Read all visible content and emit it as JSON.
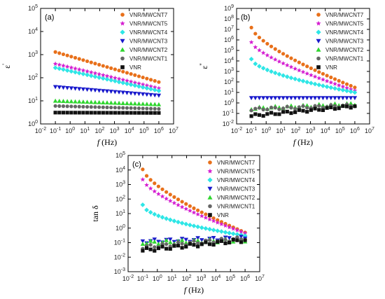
{
  "figure_colors": {
    "VNR/MWCNT7": "#e8701a",
    "VNR/MWCNT5": "#d51fd1",
    "VNR/MWCNT4": "#2ee6e6",
    "VNR/MWCNT3": "#1a1acc",
    "VNR/MWCNT2": "#2fd62f",
    "VNR/MWCNT1": "#666666",
    "VNR": "#111111"
  },
  "chart_data": [
    {
      "type": "scatter",
      "panel_label": "(a)",
      "xlabel_italic": "f",
      "xlabel_unit": " (Hz)",
      "ylabel_text": "ε",
      "ylabel_prime": "'",
      "xscale": "log",
      "yscale": "log",
      "xlim": [
        0.01,
        10000000
      ],
      "ylim": [
        1,
        100000
      ],
      "x_tick_labels": [
        "10-2",
        "10-1",
        "100",
        "101",
        "102",
        "103",
        "104",
        "105",
        "106",
        "107"
      ],
      "y_tick_labels": [
        "100",
        "101",
        "102",
        "103",
        "104",
        "105"
      ],
      "legend_position": "top-right",
      "series": [
        {
          "name": "VNR/MWCNT7",
          "marker": "circle",
          "y_start": 1300,
          "y_end": 65,
          "curve": 1.0
        },
        {
          "name": "VNR/MWCNT5",
          "marker": "star",
          "y_start": 400,
          "y_end": 35,
          "curve": 1.0
        },
        {
          "name": "VNR/MWCNT4",
          "marker": "diamond",
          "y_start": 270,
          "y_end": 27,
          "curve": 1.0
        },
        {
          "name": "VNR/MWCNT3",
          "marker": "triangle-down",
          "y_start": 40,
          "y_end": 17,
          "curve": 1.0
        },
        {
          "name": "VNR/MWCNT2",
          "marker": "triangle-up",
          "y_start": 10,
          "y_end": 7,
          "curve": 1.0
        },
        {
          "name": "VNR/MWCNT1",
          "marker": "circle",
          "y_start": 6,
          "y_end": 4.5,
          "curve": 1.0
        },
        {
          "name": "VNR",
          "marker": "square",
          "y_start": 3.1,
          "y_end": 3.0,
          "curve": 1.0
        }
      ]
    },
    {
      "type": "scatter",
      "panel_label": "(b)",
      "xlabel_italic": "f",
      "xlabel_unit": " (Hz)",
      "ylabel_text": "ε",
      "ylabel_prime": "''",
      "xscale": "log",
      "yscale": "log",
      "xlim": [
        0.01,
        10000000
      ],
      "ylim": [
        0.01,
        1000000000
      ],
      "x_tick_labels": [
        "10-2",
        "10-1",
        "100",
        "101",
        "102",
        "103",
        "104",
        "105",
        "106",
        "107"
      ],
      "y_tick_labels": [
        "10-2",
        "10-1",
        "100",
        "101",
        "102",
        "103",
        "104",
        "105",
        "106",
        "107",
        "108",
        "109"
      ],
      "legend_position": "top-right",
      "series": [
        {
          "name": "VNR/MWCNT7",
          "marker": "circle",
          "y_start": 15000000,
          "y_end": 30,
          "curve": 0.7
        },
        {
          "name": "VNR/MWCNT5",
          "marker": "star",
          "y_start": 600000,
          "y_end": 15,
          "curve": 0.7
        },
        {
          "name": "VNR/MWCNT4",
          "marker": "diamond",
          "y_start": 15000,
          "y_end": 10,
          "curve": 0.6
        },
        {
          "name": "VNR/MWCNT3",
          "marker": "triangle-down",
          "y_start": 3,
          "y_end": 3,
          "curve": 1.0
        },
        {
          "name": "VNR/MWCNT2",
          "marker": "triangle-up",
          "y_start": 0.3,
          "y_end": 0.8,
          "curve": 1.0
        },
        {
          "name": "VNR/MWCNT1",
          "marker": "circle",
          "y_start": 0.25,
          "y_end": 0.6,
          "curve": 1.0
        },
        {
          "name": "VNR",
          "marker": "square",
          "y_start": 0.06,
          "y_end": 0.5,
          "curve": 1.0
        }
      ]
    },
    {
      "type": "scatter",
      "panel_label": "(c)",
      "xlabel_italic": "f",
      "xlabel_unit": " (Hz)",
      "ylabel_text": "tan δ",
      "ylabel_prime": "",
      "xscale": "log",
      "yscale": "log",
      "xlim": [
        0.01,
        10000000
      ],
      "ylim": [
        0.001,
        100000
      ],
      "x_tick_labels": [
        "10-2",
        "10-1",
        "100",
        "101",
        "102",
        "103",
        "104",
        "105",
        "106",
        "107"
      ],
      "y_tick_labels": [
        "10-3",
        "10-2",
        "10-1",
        "100",
        "101",
        "102",
        "103",
        "104",
        "105"
      ],
      "legend_position": "top-right",
      "series": [
        {
          "name": "VNR/MWCNT7",
          "marker": "circle",
          "y_start": 11000,
          "y_end": 0.5,
          "curve": 0.7
        },
        {
          "name": "VNR/MWCNT5",
          "marker": "star",
          "y_start": 2200,
          "y_end": 0.45,
          "curve": 0.7
        },
        {
          "name": "VNR/MWCNT4",
          "marker": "diamond",
          "y_start": 40,
          "y_end": 0.3,
          "curve": 0.55
        },
        {
          "name": "VNR/MWCNT3",
          "marker": "triangle-down",
          "y_start": 0.12,
          "y_end": 0.2,
          "curve": 1.0
        },
        {
          "name": "VNR/MWCNT2",
          "marker": "triangle-up",
          "y_start": 0.1,
          "y_end": 0.15,
          "curve": 1.0
        },
        {
          "name": "VNR/MWCNT1",
          "marker": "circle",
          "y_start": 0.05,
          "y_end": 0.2,
          "curve": 1.0
        },
        {
          "name": "VNR",
          "marker": "square",
          "y_start": 0.03,
          "y_end": 0.15,
          "curve": 1.0
        }
      ]
    }
  ]
}
